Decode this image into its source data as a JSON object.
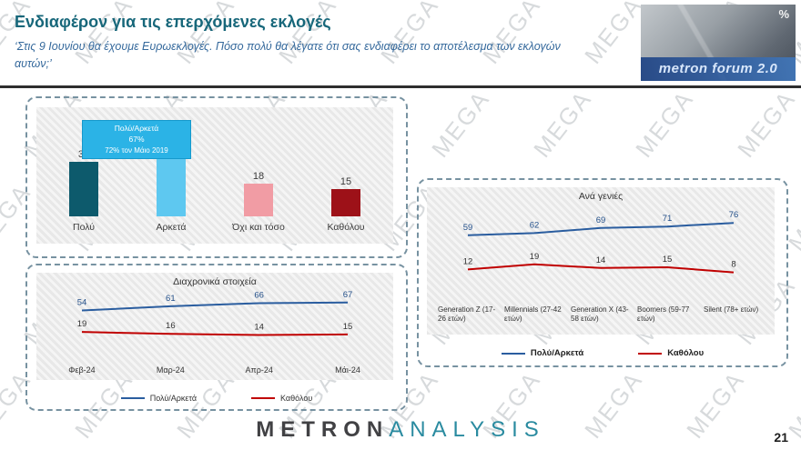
{
  "header": {
    "title": "Ενδιαφέρον για τις επερχόμενες εκλογές",
    "subtitle": "‘Στις 9 Ιουνίου θα έχουμε Ευρωεκλογές. Πόσο πολύ θα λέγατε ότι σας ενδιαφέρει το αποτέλεσμα των εκλογών αυτών;’",
    "logo_text": "metron forum 2.0",
    "percent_symbol": "%"
  },
  "watermark": {
    "text": "MEGA"
  },
  "callout": {
    "line1": "Πολύ/Αρκετά",
    "line2": "67%",
    "line3": "72% τον Μάιο 2019"
  },
  "footer": {
    "logo_left": "METRON",
    "logo_right": "ANALYSIS",
    "page_number": "21"
  },
  "chart_data": [
    {
      "type": "bar",
      "title": "",
      "categories": [
        "Πολύ",
        "Αρκετά",
        "Όχι και τόσο",
        "Καθόλου"
      ],
      "values": [
        30,
        37,
        18,
        15
      ],
      "colors": [
        "#0d5a6c",
        "#5ec8f0",
        "#f19ca4",
        "#9d1118"
      ],
      "annotation": "Πολύ/Αρκετά 67% (72% τον Μάιο 2019)",
      "ylim": [
        0,
        40
      ]
    },
    {
      "type": "line",
      "title": "Διαχρονικά στοιχεία",
      "categories": [
        "Φεβ-24",
        "Μαρ-24",
        "Απρ-24",
        "Μάι-24"
      ],
      "series": [
        {
          "name": "Πολύ/Αρκετά",
          "color": "#2a5d9f",
          "values": [
            54,
            61,
            66,
            67
          ]
        },
        {
          "name": "Καθόλου",
          "color": "#c00000",
          "values": [
            19,
            16,
            14,
            15
          ]
        }
      ],
      "legend_position": "bottom",
      "ylim": [
        0,
        80
      ]
    },
    {
      "type": "line",
      "title": "Ανά γενιές",
      "categories": [
        "Generation Z (17-26 ετών)",
        "Millennials (27-42 ετών)",
        "Generation X (43-58 ετών)",
        "Boomers (59-77 ετών)",
        "Silent (78+ ετών)"
      ],
      "series": [
        {
          "name": "Πολύ/Αρκετά",
          "color": "#2a5d9f",
          "values": [
            59,
            62,
            69,
            71,
            76
          ]
        },
        {
          "name": "Καθόλου",
          "color": "#c00000",
          "values": [
            12,
            19,
            14,
            15,
            8
          ]
        }
      ],
      "legend_position": "bottom",
      "ylim": [
        0,
        90
      ]
    }
  ]
}
